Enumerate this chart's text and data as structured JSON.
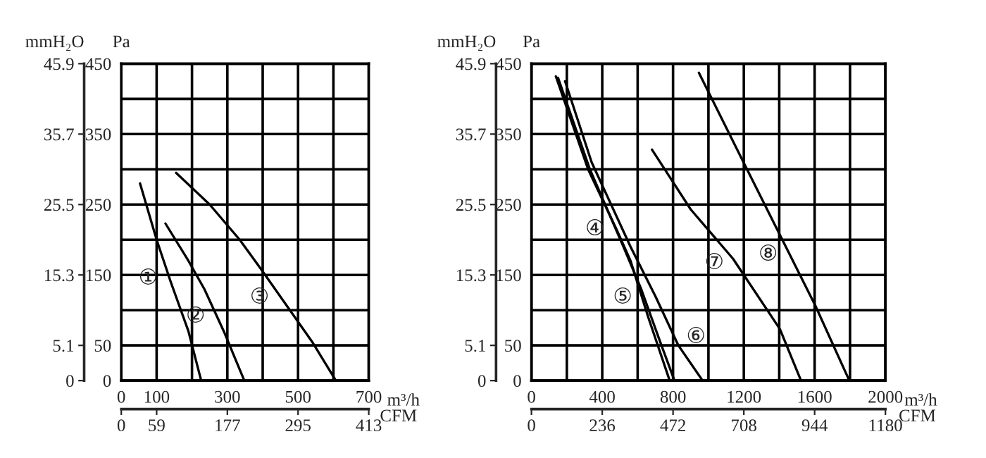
{
  "chart_data": [
    {
      "type": "line",
      "xlabel": "m³/h",
      "ylabel": "Pa",
      "y2label": "mmH₂O",
      "x2label": "CFM",
      "grid": true,
      "legend": false,
      "marker": "none",
      "line_style": "solid",
      "xlim": [
        0,
        700
      ],
      "xticks": [
        0,
        100,
        {
          "value": 200,
          "label": null
        },
        300,
        {
          "value": 400,
          "label": null
        },
        500,
        {
          "value": 600,
          "label": null
        },
        700
      ],
      "ylim": [
        0,
        450
      ],
      "yticks": [
        0,
        50,
        {
          "value": 100,
          "label": null
        },
        150,
        {
          "value": 200,
          "label": null
        },
        250,
        {
          "value": 300,
          "label": null
        },
        350,
        {
          "value": 400,
          "label": null
        },
        450
      ],
      "y2lim": [
        0,
        45.9
      ],
      "y2ticks": [
        0,
        5.1,
        15.3,
        25.5,
        35.7,
        45.9
      ],
      "x2lim": [
        0,
        413
      ],
      "x2ticks": [
        0,
        59,
        177,
        295,
        413
      ],
      "series": [
        {
          "color": "#000000",
          "x": [
            53,
            100,
            140,
            190,
            226
          ],
          "values": [
            280,
            200,
            140,
            70,
            0
          ]
        },
        {
          "color": "#000000",
          "x": [
            125,
            190,
            235,
            290,
            348
          ],
          "values": [
            223,
            170,
            130,
            70,
            0
          ]
        },
        {
          "color": "#000000",
          "x": [
            155,
            250,
            335,
            400,
            470,
            540,
            607
          ],
          "values": [
            295,
            250,
            200,
            155,
            105,
            55,
            0
          ]
        }
      ],
      "annotations": [
        {
          "text": "①",
          "x": 137,
          "y": 145
        },
        {
          "text": "②",
          "x": 271,
          "y": 91
        },
        {
          "text": "③",
          "x": 452,
          "y": 118
        }
      ]
    },
    {
      "type": "line",
      "xlabel": "m³/h",
      "ylabel": "Pa",
      "y2label": "mmH₂O",
      "x2label": "CFM",
      "grid": true,
      "legend": false,
      "marker": "none",
      "line_style": "solid",
      "xlim": [
        0,
        2000
      ],
      "xticks": [
        0,
        {
          "value": 200,
          "label": null
        },
        400,
        {
          "value": 600,
          "label": null
        },
        800,
        {
          "value": 1000,
          "label": null
        },
        1200,
        {
          "value": 1400,
          "label": null
        },
        1600,
        {
          "value": 1800,
          "label": null
        },
        2000
      ],
      "ylim": [
        0,
        450
      ],
      "yticks": [
        0,
        50,
        {
          "value": 100,
          "label": null
        },
        150,
        {
          "value": 200,
          "label": null
        },
        250,
        {
          "value": 300,
          "label": null
        },
        350,
        {
          "value": 400,
          "label": null
        },
        450
      ],
      "y2lim": [
        0,
        45.9
      ],
      "y2ticks": [
        0,
        5.1,
        15.3,
        25.5,
        35.7,
        45.9
      ],
      "x2lim": [
        0,
        1180
      ],
      "x2ticks": [
        0,
        236,
        472,
        708,
        944,
        1180
      ],
      "series": [
        {
          "color": "#000000",
          "x": [
            138,
            320,
            480,
            560,
            660,
            781
          ],
          "values": [
            432,
            300,
            215,
            170,
            90,
            0
          ]
        },
        {
          "color": "#000000",
          "x": [
            150,
            330,
            520,
            620,
            720,
            808
          ],
          "values": [
            430,
            300,
            190,
            130,
            60,
            0
          ]
        },
        {
          "color": "#000000",
          "x": [
            190,
            340,
            560,
            700,
            830,
            967
          ],
          "values": [
            425,
            310,
            190,
            120,
            50,
            0
          ]
        },
        {
          "color": "#000000",
          "x": [
            681,
            900,
            1139,
            1404,
            1523
          ],
          "values": [
            328,
            243,
            173,
            73,
            0
          ]
        },
        {
          "color": "#000000",
          "x": [
            946,
            1192,
            1603,
            1796
          ],
          "values": [
            437,
            313,
            107,
            0
          ]
        }
      ],
      "annotations": [
        {
          "text": "④",
          "x": 480,
          "y": 215
        },
        {
          "text": "⑤",
          "x": 637,
          "y": 118
        },
        {
          "text": "⑥",
          "x": 808,
          "y": 62
        },
        {
          "text": "⑦",
          "x": 1155,
          "y": 167
        },
        {
          "text": "⑧",
          "x": 1459,
          "y": 179
        }
      ]
    }
  ]
}
